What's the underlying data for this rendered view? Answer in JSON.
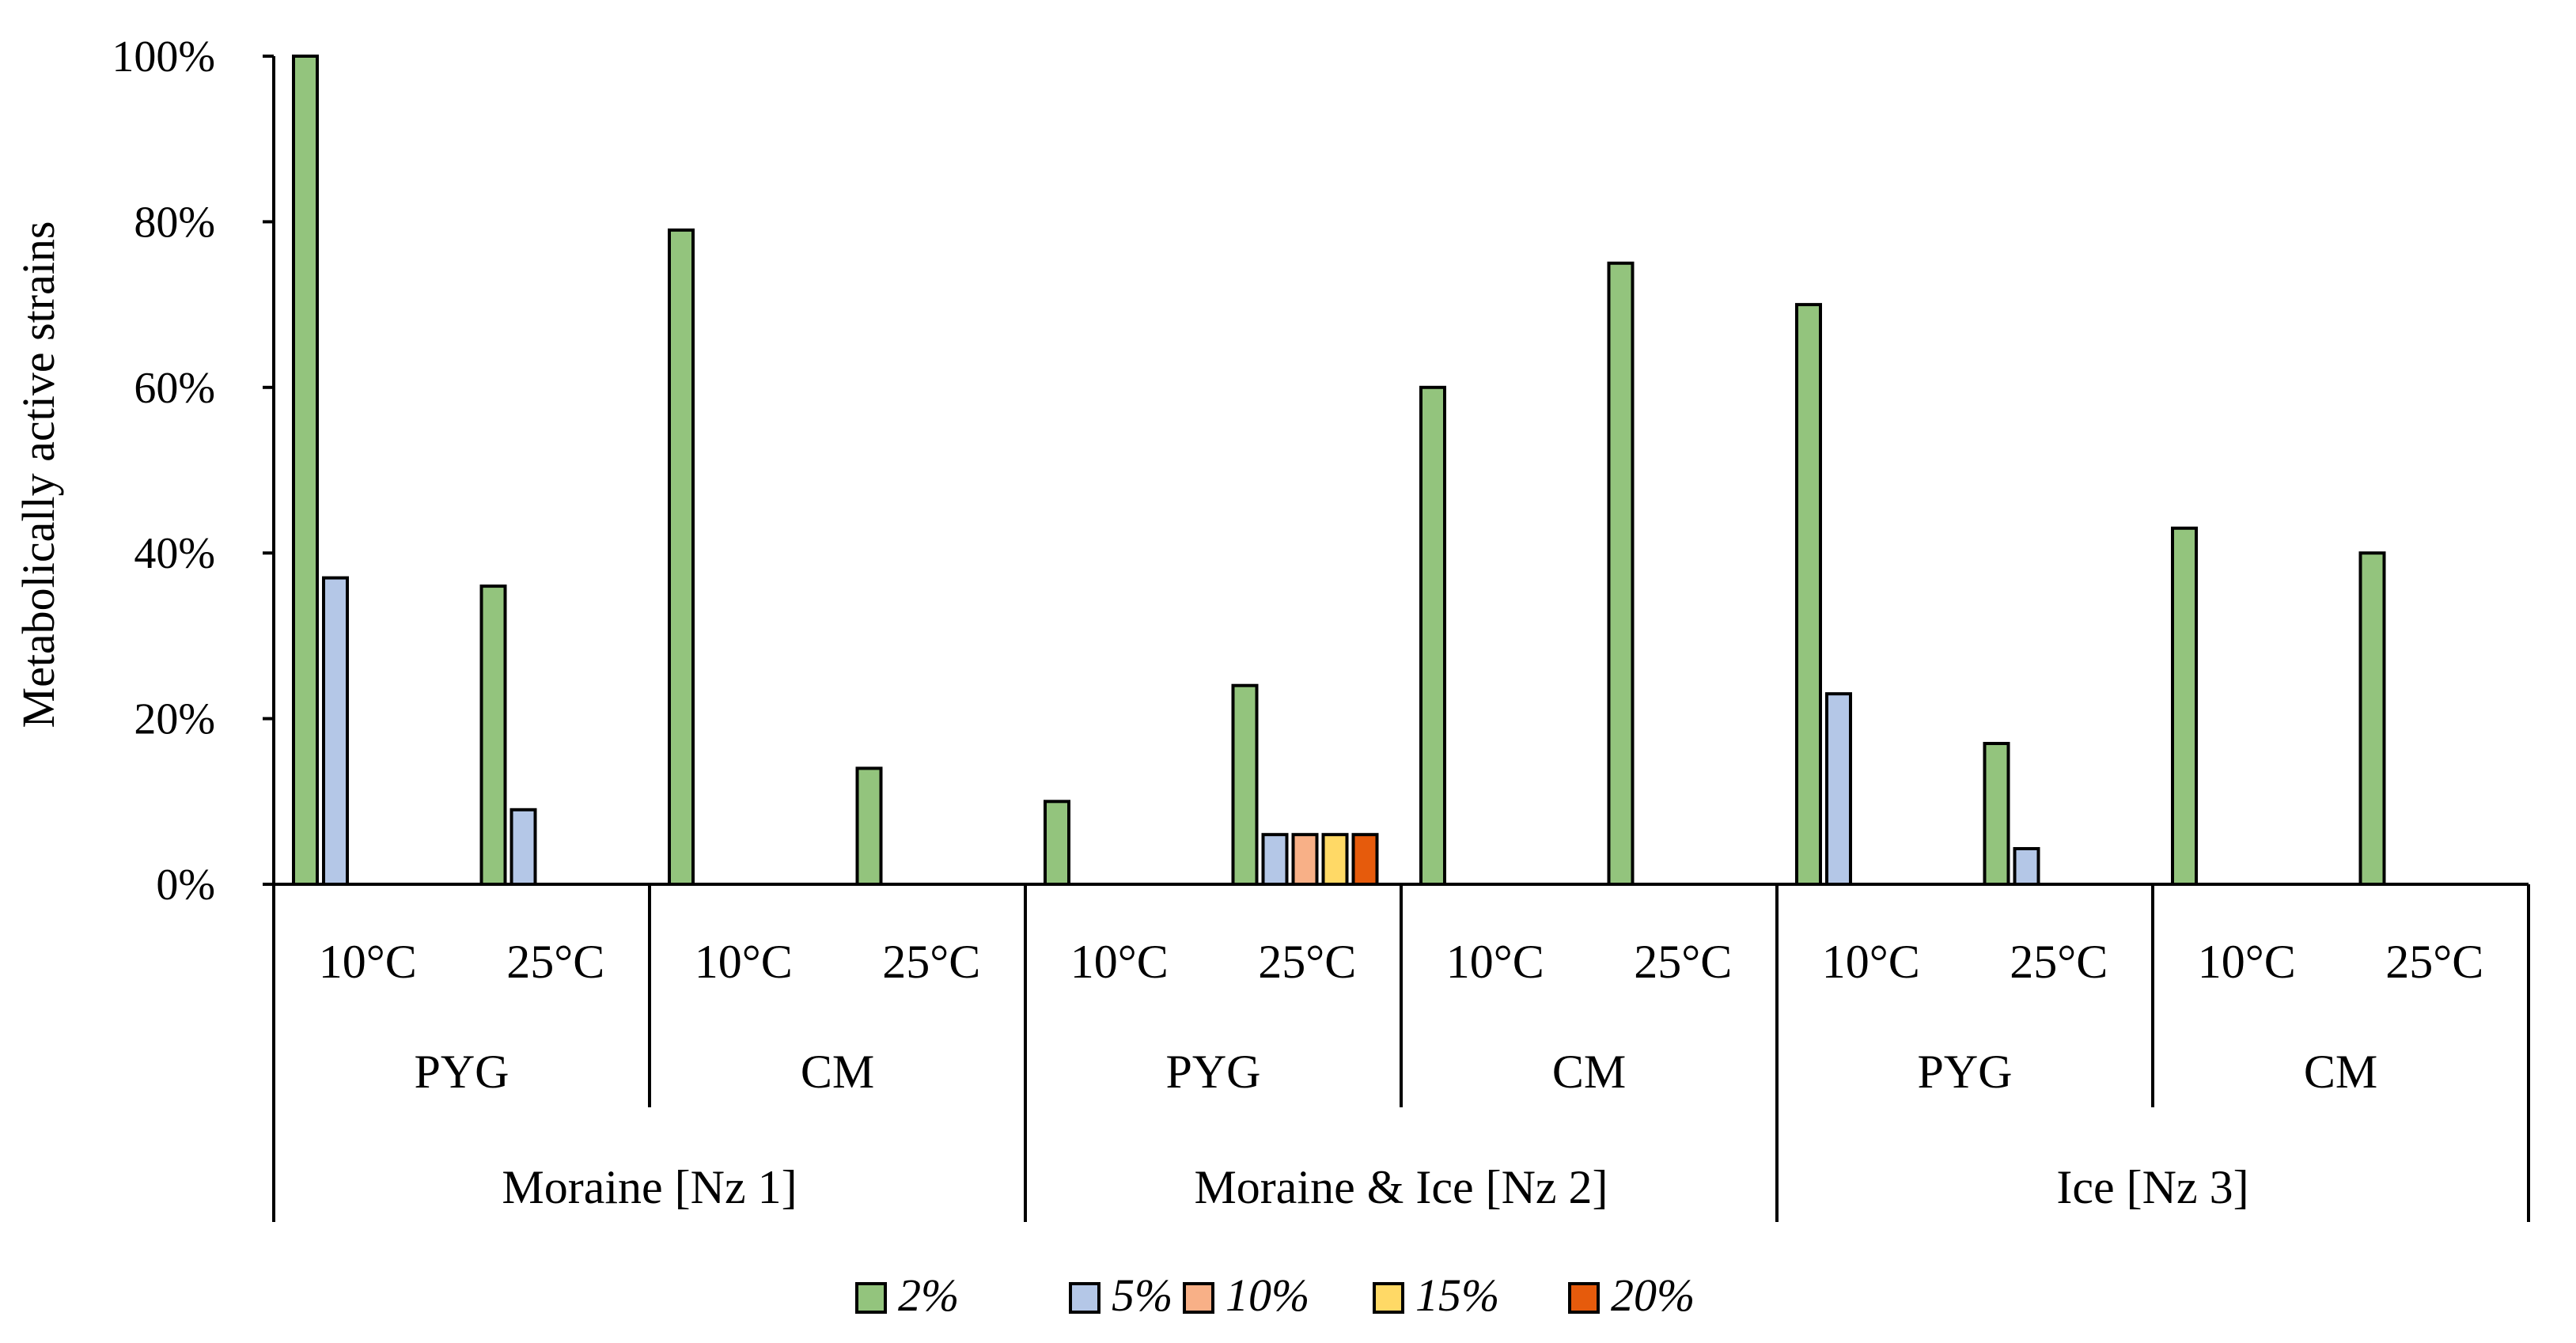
{
  "chart_data": {
    "type": "bar",
    "ylabel": "Metabolically active strains",
    "ylim": [
      0,
      100
    ],
    "y_ticks": [
      "0%",
      "20%",
      "40%",
      "60%",
      "80%",
      "100%"
    ],
    "grid": false,
    "legend_position": "bottom",
    "groups": [
      {
        "name": "Moraine [Nz 1]",
        "media": [
          {
            "name": "PYG",
            "temps": [
              "10°C",
              "25°C"
            ]
          },
          {
            "name": "CM",
            "temps": [
              "10°C",
              "25°C"
            ]
          }
        ]
      },
      {
        "name": "Moraine & Ice [Nz 2]",
        "media": [
          {
            "name": "PYG",
            "temps": [
              "10°C",
              "25°C"
            ]
          },
          {
            "name": "CM",
            "temps": [
              "10°C",
              "25°C"
            ]
          }
        ]
      },
      {
        "name": "Ice [Nz 3]",
        "media": [
          {
            "name": "PYG",
            "temps": [
              "10°C",
              "25°C"
            ]
          },
          {
            "name": "CM",
            "temps": [
              "10°C",
              "25°C"
            ]
          }
        ]
      }
    ],
    "series": [
      {
        "name": "2%",
        "color": "#93c47d",
        "values": [
          100,
          36,
          79,
          14,
          10,
          24,
          60,
          75,
          70,
          17,
          43,
          40
        ]
      },
      {
        "name": "5%",
        "color": "#b4c7e7",
        "values": [
          37,
          9,
          0,
          0,
          0,
          6,
          0,
          0,
          23,
          4.3,
          0,
          0
        ]
      },
      {
        "name": "10%",
        "color": "#f8b087",
        "values": [
          0,
          0,
          0,
          0,
          0,
          6,
          0,
          0,
          0,
          0,
          0,
          0
        ]
      },
      {
        "name": "15%",
        "color": "#ffd966",
        "values": [
          0,
          0,
          0,
          0,
          0,
          6,
          0,
          0,
          0,
          0,
          0,
          0
        ]
      },
      {
        "name": "20%",
        "color": "#e65b0c",
        "values": [
          0,
          0,
          0,
          0,
          0,
          6,
          0,
          0,
          0,
          0,
          0,
          0
        ]
      }
    ]
  }
}
